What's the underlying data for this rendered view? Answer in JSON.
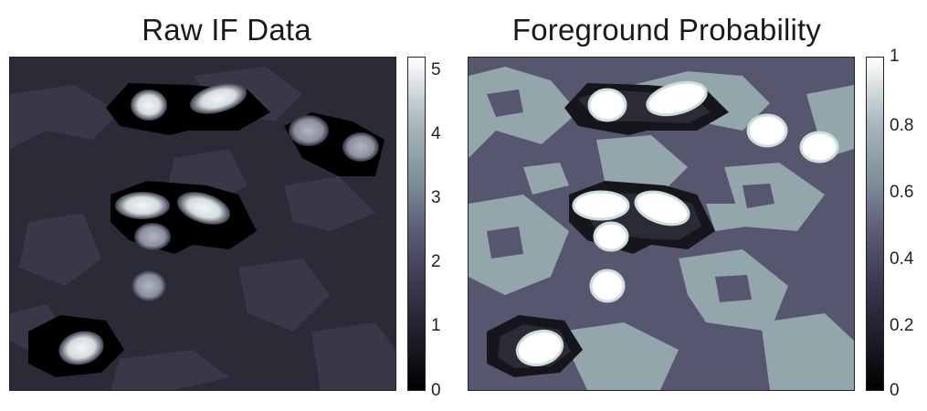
{
  "panels": [
    {
      "title": "Raw IF Data",
      "colorbar": {
        "ticks": [
          "0",
          "1",
          "2",
          "3",
          "4",
          "5"
        ]
      },
      "colors": {
        "bg": "#2e2e3a",
        "mid": "#3c3c4d",
        "dark": "#000000",
        "blob_high": "#f2f4f4",
        "blob_mid": "#c8d3d6"
      }
    },
    {
      "title": "Foreground Probability",
      "colorbar": {
        "ticks": [
          "0",
          "0.2",
          "0.4",
          "0.6",
          "0.8",
          "1"
        ]
      },
      "colors": {
        "bg": "#56566e",
        "mid": "#8fa6ab",
        "dark": "#15151b",
        "blob_high": "#ffffff",
        "blob_mid": "#e9eeef"
      }
    }
  ],
  "colormap": [
    "#000000",
    "#1b1a24",
    "#3a3950",
    "#5b5b75",
    "#7d8d99",
    "#a6b6ba",
    "#ffffff"
  ]
}
